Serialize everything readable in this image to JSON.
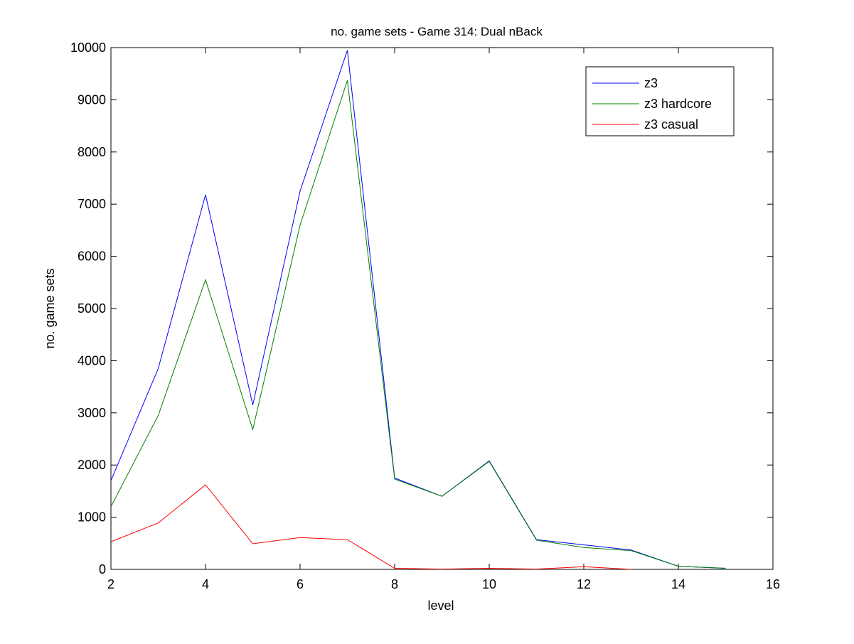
{
  "chart_data": {
    "type": "line",
    "title": "no. game sets - Game 314: Dual nBack",
    "xlabel": "level",
    "ylabel": "no. game sets",
    "xlim": [
      2,
      16
    ],
    "ylim": [
      0,
      10000
    ],
    "xticks": [
      2,
      4,
      6,
      8,
      10,
      12,
      14,
      16
    ],
    "yticks": [
      0,
      1000,
      2000,
      3000,
      4000,
      5000,
      6000,
      7000,
      8000,
      9000,
      10000
    ],
    "grid": false,
    "legend_position": "top-right",
    "series": [
      {
        "name": "z3",
        "color": "#0000ff",
        "x": [
          2,
          3,
          4,
          5,
          6,
          7,
          8,
          9,
          10,
          11,
          12,
          13,
          14,
          15
        ],
        "y": [
          1700,
          3850,
          7180,
          3150,
          7250,
          9950,
          1750,
          1400,
          2080,
          570,
          470,
          370,
          60,
          20
        ]
      },
      {
        "name": "z3 hardcore",
        "color": "#008000",
        "x": [
          2,
          3,
          4,
          5,
          6,
          7,
          8,
          9,
          10,
          11,
          12,
          13,
          14,
          15
        ],
        "y": [
          1200,
          2950,
          5550,
          2680,
          6600,
          9370,
          1730,
          1400,
          2070,
          560,
          420,
          360,
          60,
          20
        ]
      },
      {
        "name": "z3 casual",
        "color": "#ff0000",
        "x": [
          2,
          3,
          4,
          5,
          6,
          7,
          8,
          9,
          10,
          11,
          12,
          13
        ],
        "y": [
          530,
          890,
          1620,
          490,
          610,
          570,
          20,
          5,
          20,
          5,
          50,
          0
        ]
      }
    ]
  }
}
